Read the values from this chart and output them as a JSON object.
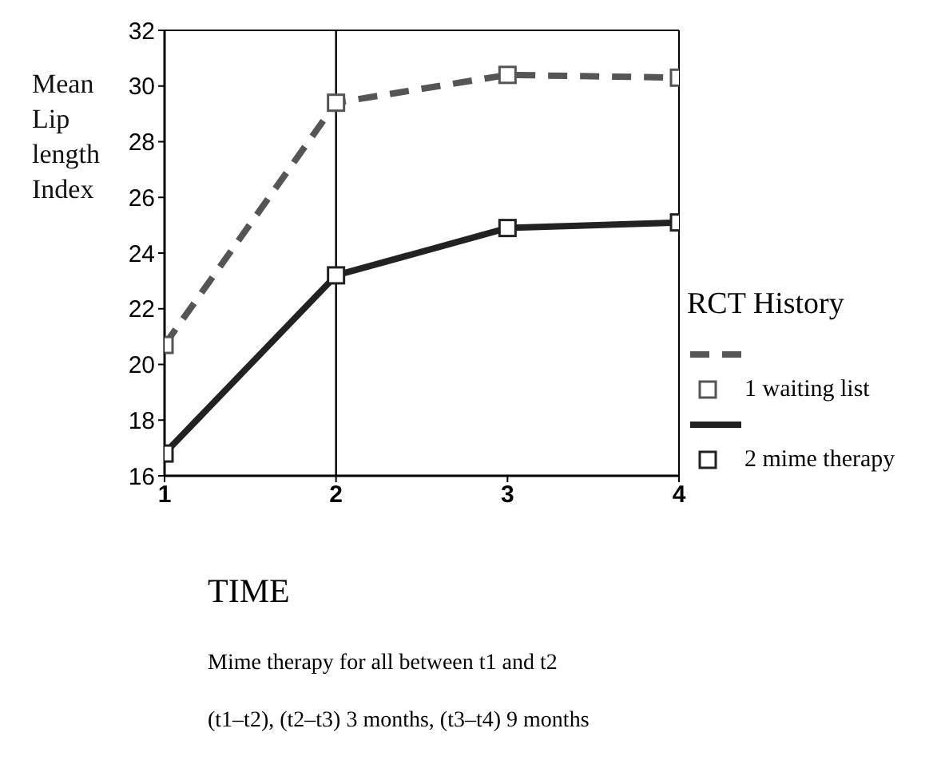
{
  "chart_data": {
    "type": "line",
    "ylabel": "Mean Lip length Index",
    "xlabel": "TIME",
    "legend_title": "RCT History",
    "x": [
      1,
      2,
      3,
      4
    ],
    "series": [
      {
        "name": "1 waiting list",
        "color": "#555555",
        "line_style": "dashed",
        "values": [
          20.7,
          29.4,
          30.4,
          30.3
        ]
      },
      {
        "name": "2 mime therapy",
        "color": "#222222",
        "line_style": "solid",
        "values": [
          16.8,
          23.2,
          24.9,
          25.1
        ]
      }
    ],
    "xlim": [
      1,
      4
    ],
    "xticks": [
      1,
      2,
      3,
      4
    ],
    "ylim": [
      16,
      32
    ],
    "yticks": [
      16,
      18,
      20,
      22,
      24,
      26,
      28,
      30,
      32
    ],
    "ref_lines": [
      {
        "axis": "x",
        "value": 2,
        "color": "#000000"
      }
    ],
    "marker": "square",
    "grid": false,
    "legend": "right",
    "annotations": [
      "Mime therapy for all between t1 and t2",
      "(t1–t2), (t2–t3) 3 months, (t3–t4) 9 months"
    ]
  }
}
